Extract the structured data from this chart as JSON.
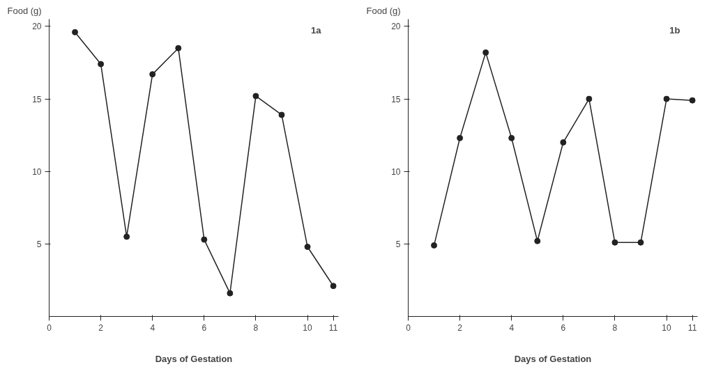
{
  "chart_data": [
    {
      "type": "line",
      "ylabel": "Food (g)",
      "xlabel": "Days of Gestation",
      "annotations": [
        "1a"
      ],
      "marker": "circle",
      "line_style": "solid",
      "grid": false,
      "x": [
        1,
        2,
        3,
        4,
        5,
        6,
        7,
        8,
        9,
        10,
        11
      ],
      "series": [
        {
          "color": "#222222",
          "values": [
            19.6,
            17.4,
            5.5,
            16.7,
            18.5,
            5.3,
            1.6,
            15.2,
            13.9,
            4.8,
            2.1
          ]
        }
      ],
      "xlim": [
        0,
        11.2
      ],
      "xticks": [
        0,
        2,
        4,
        6,
        8,
        10,
        11
      ],
      "ylim": [
        0,
        20.5
      ],
      "yticks": [
        5,
        10,
        15,
        20
      ]
    },
    {
      "type": "line",
      "ylabel": "Food (g)",
      "xlabel": "Days of Gestation",
      "annotations": [
        "1b"
      ],
      "marker": "circle",
      "line_style": "solid",
      "grid": false,
      "x": [
        1,
        2,
        3,
        4,
        5,
        6,
        7,
        8,
        9,
        10,
        11
      ],
      "series": [
        {
          "color": "#222222",
          "values": [
            4.9,
            12.3,
            18.2,
            12.3,
            5.2,
            12.0,
            15.0,
            5.1,
            5.1,
            15.0,
            14.9
          ]
        }
      ],
      "xlim": [
        0,
        11.2
      ],
      "xticks": [
        0,
        2,
        4,
        6,
        8,
        10,
        11
      ],
      "ylim": [
        0,
        20.5
      ],
      "yticks": [
        5,
        10,
        15,
        20
      ]
    }
  ]
}
